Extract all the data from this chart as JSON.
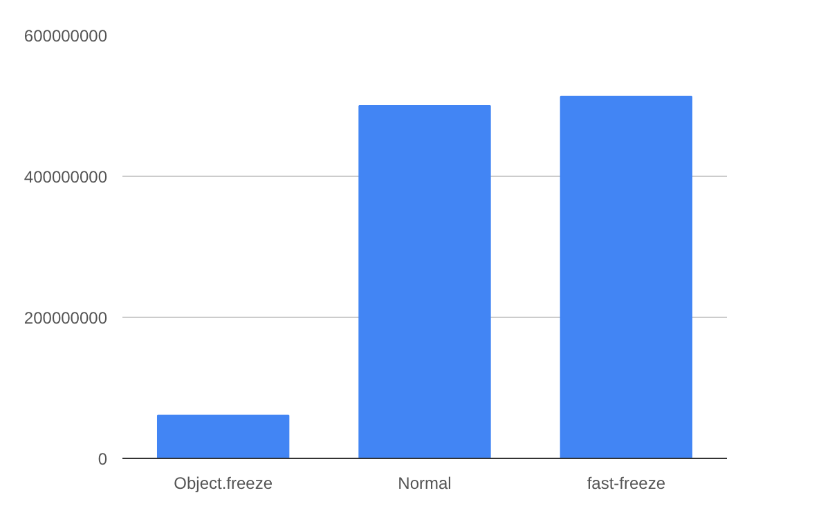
{
  "chart_data": {
    "type": "bar",
    "categories": [
      "Object.freeze",
      "Normal",
      "fast-freeze"
    ],
    "series": [
      {
        "color": "#4285f4",
        "values": [
          61000000,
          500000000,
          513000000
        ]
      }
    ],
    "ylim": [
      0,
      600000000
    ],
    "yticks": [
      0,
      200000000,
      400000000,
      600000000
    ],
    "grid": "y"
  }
}
